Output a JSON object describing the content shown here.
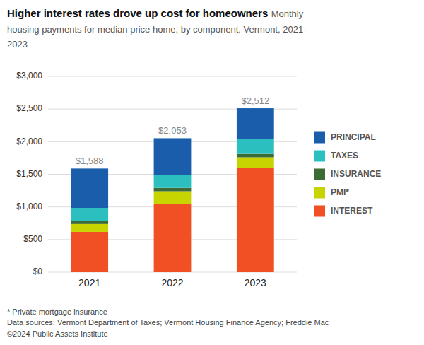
{
  "chart_data": {
    "type": "bar",
    "stacked": true,
    "title": "Higher interest rates drove up cost for homeowners",
    "subtitle": "Monthly housing payments for median price home, by component, Vermont, 2021-2023",
    "categories": [
      "2021",
      "2022",
      "2023"
    ],
    "series": [
      {
        "name": "INTEREST",
        "color": "#F05023",
        "values": [
          618,
          1050,
          1595
        ]
      },
      {
        "name": "PMI*",
        "color": "#C8D400",
        "values": [
          120,
          190,
          165
        ]
      },
      {
        "name": "INSURANCE",
        "color": "#3D6B35",
        "values": [
          52,
          52,
          52
        ]
      },
      {
        "name": "TAXES",
        "color": "#2BBFBF",
        "values": [
          195,
          195,
          225
        ]
      },
      {
        "name": "PRINCIPAL",
        "color": "#1A5DAB",
        "values": [
          603,
          566,
          475
        ]
      }
    ],
    "totals": [
      1588,
      2053,
      2512
    ],
    "total_labels": [
      "$1,588",
      "$2,053",
      "$2,512"
    ],
    "ylim": [
      0,
      3000
    ],
    "yticks": [
      {
        "value": 0,
        "label": "$0"
      },
      {
        "value": 500,
        "label": "$500"
      },
      {
        "value": 1000,
        "label": "$1,000"
      },
      {
        "value": 1500,
        "label": "$1,500"
      },
      {
        "value": 2000,
        "label": "$2,000"
      },
      {
        "value": 2500,
        "label": "$2,500"
      },
      {
        "value": 3000,
        "label": "$3,000"
      }
    ],
    "grid": true,
    "legend": "right",
    "annotations": [
      "* Private mortgage insurance",
      "Data sources: Vermont Department of Taxes; Vermont Housing Finance Agency; Freddie Mac",
      "©2024 Public Assets Institute"
    ]
  }
}
